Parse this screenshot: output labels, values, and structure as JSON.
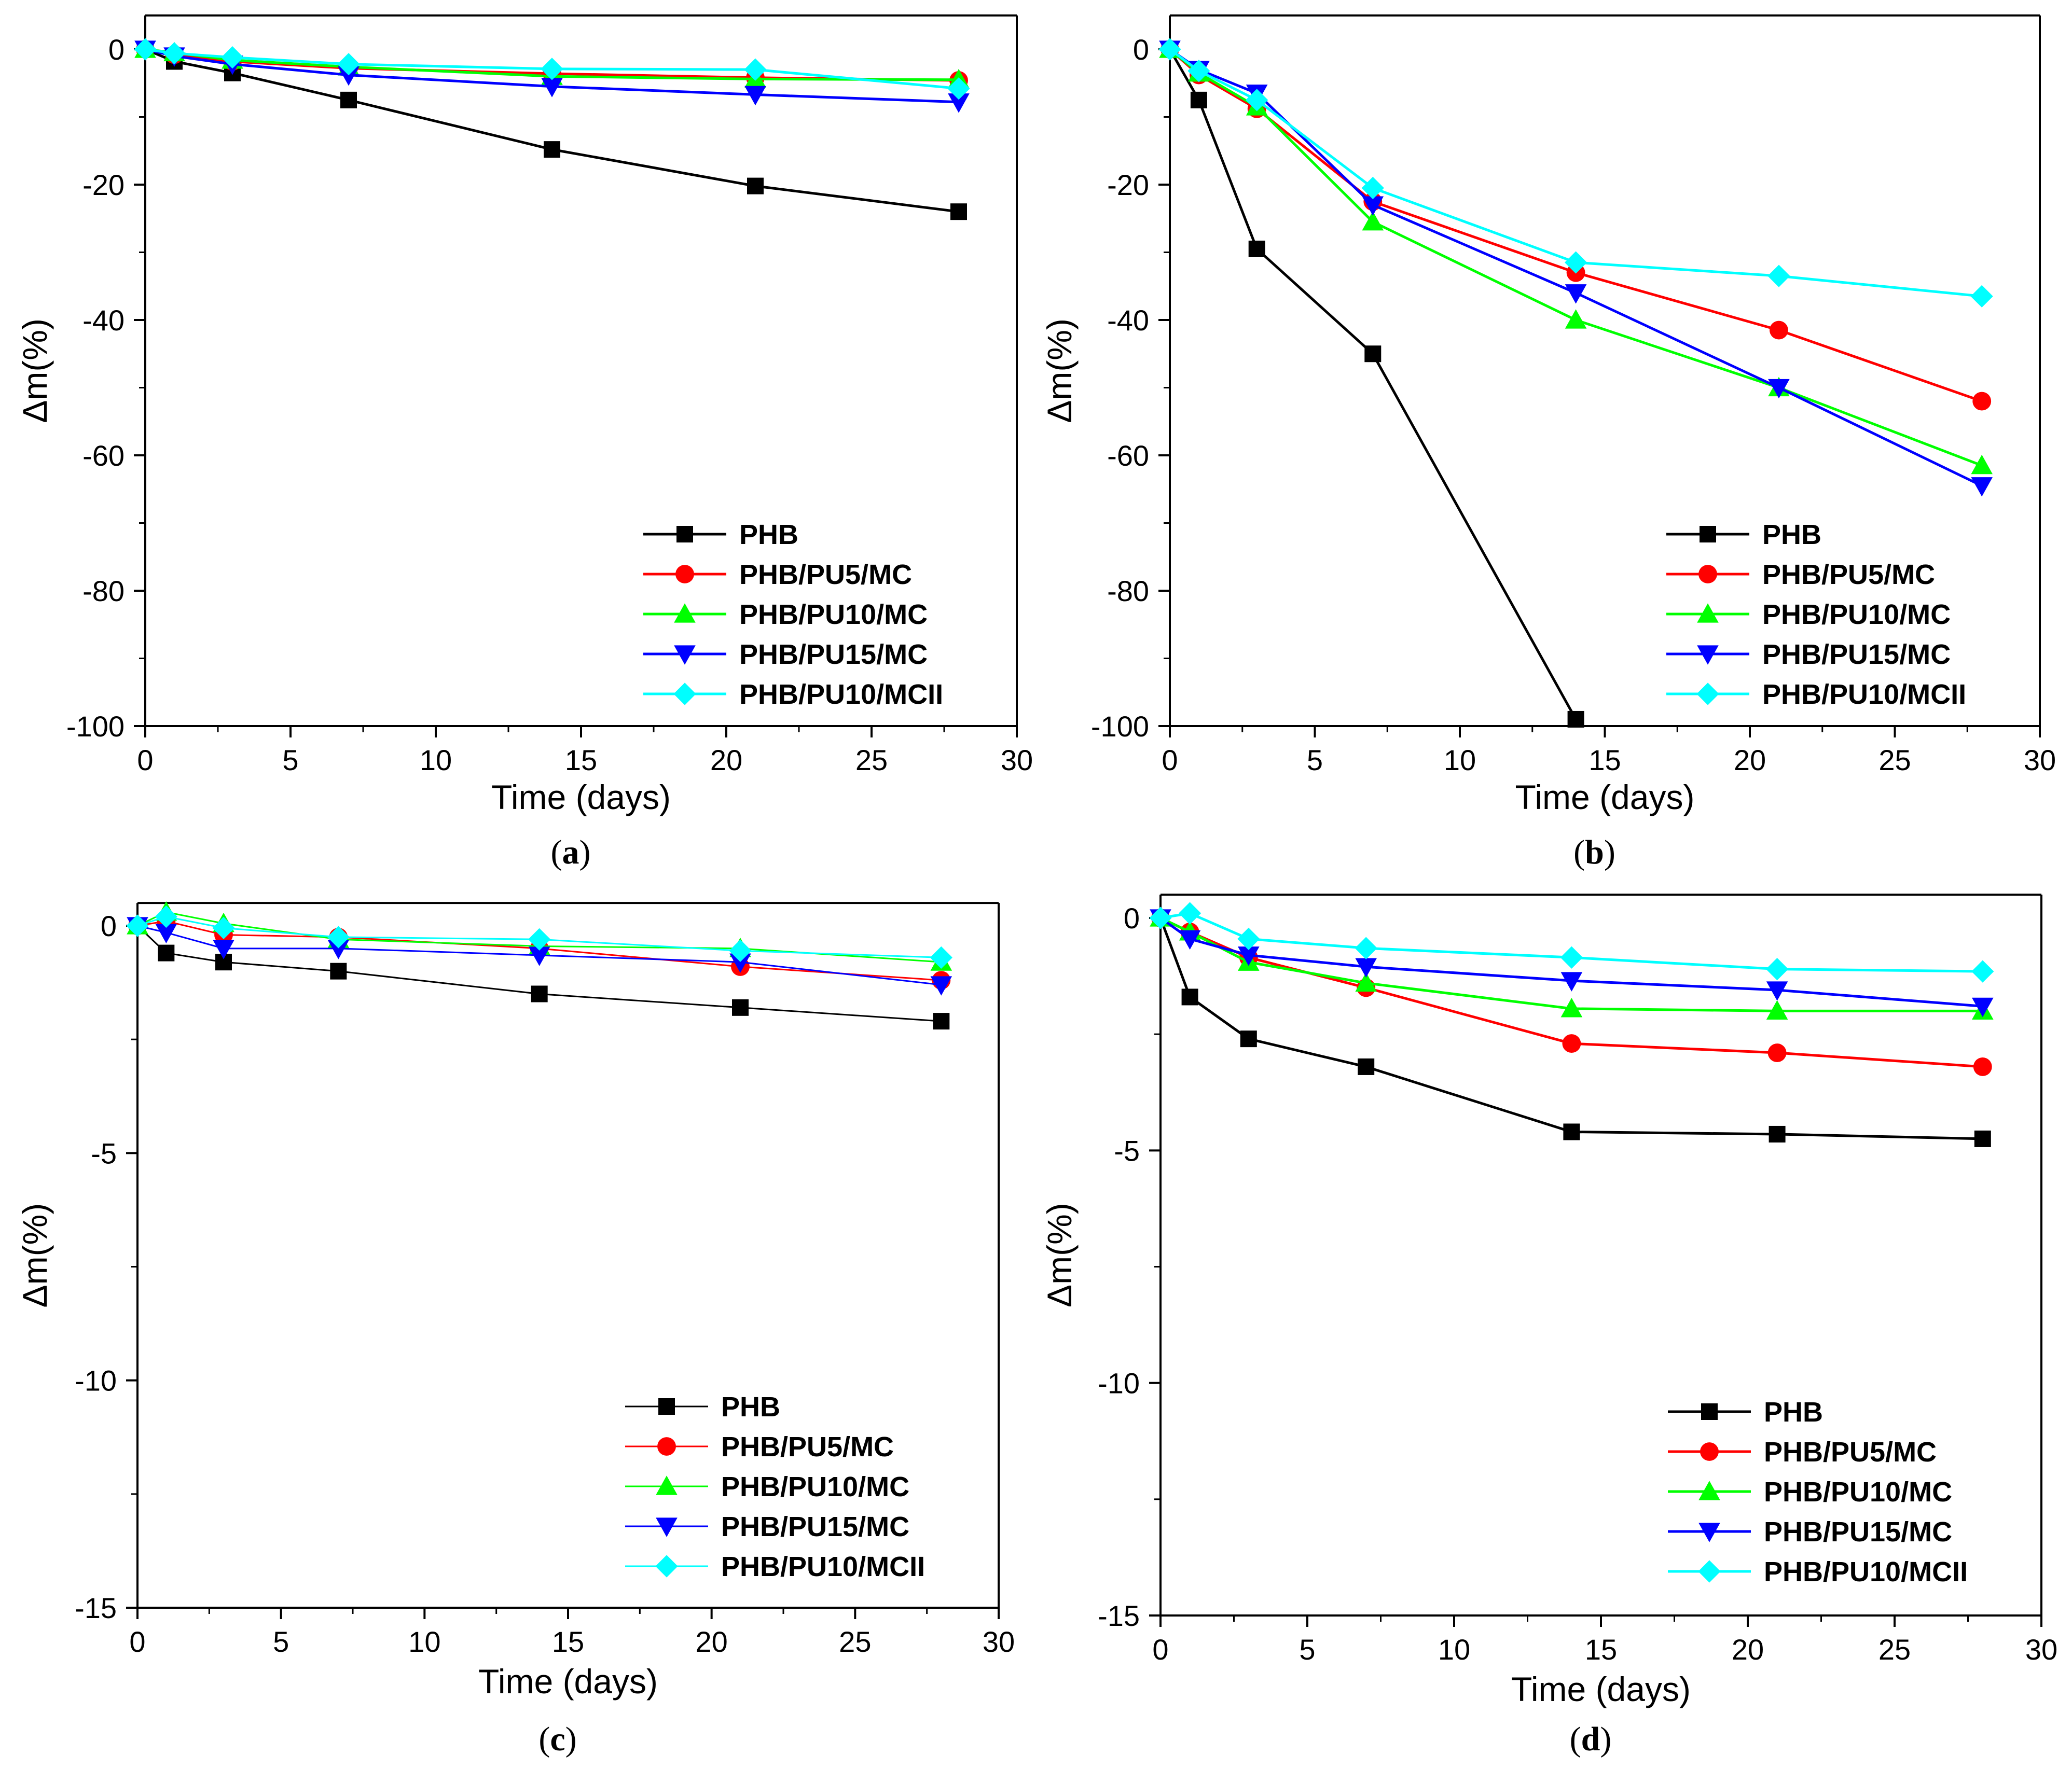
{
  "chart_data": [
    {
      "type": "line",
      "panel_label": "a",
      "xlabel": "Time (days)",
      "ylabel": "Δm(%)",
      "xlim": [
        0,
        30
      ],
      "ylim": [
        -100,
        5
      ],
      "xticks": [
        0,
        5,
        10,
        15,
        20,
        25,
        30
      ],
      "yticks": [
        0,
        -20,
        -40,
        -60,
        -80,
        -100
      ],
      "legend_position": "bottom-right",
      "x": [
        0,
        1,
        3,
        7,
        14,
        21,
        28
      ],
      "series": [
        {
          "name": "PHB",
          "marker": "square",
          "color": "#000000",
          "values": [
            0,
            -1.8,
            -3.5,
            -7.5,
            -14.8,
            -20.2,
            -24
          ]
        },
        {
          "name": "PHB/PU5/MC",
          "marker": "circle",
          "color": "#ff0000",
          "values": [
            0,
            -0.8,
            -1.8,
            -2.8,
            -3.6,
            -4.2,
            -4.6
          ]
        },
        {
          "name": "PHB/PU10/MC",
          "marker": "triangle-up",
          "color": "#00ff00",
          "values": [
            0,
            -0.5,
            -1.6,
            -2.6,
            -4.0,
            -4.4,
            -4.5
          ]
        },
        {
          "name": "PHB/PU15/MC",
          "marker": "triangle-down",
          "color": "#0000ff",
          "values": [
            0,
            -1.0,
            -2.2,
            -3.8,
            -5.5,
            -6.7,
            -7.8
          ]
        },
        {
          "name": "PHB/PU10/MCII",
          "marker": "diamond",
          "color": "#00ffff",
          "values": [
            0,
            -0.6,
            -1.2,
            -2.2,
            -2.9,
            -3.0,
            -5.8
          ]
        }
      ]
    },
    {
      "type": "line",
      "panel_label": "b",
      "xlabel": "Time (days)",
      "ylabel": "Δm(%)",
      "xlim": [
        0,
        30
      ],
      "ylim": [
        -100,
        5
      ],
      "xticks": [
        0,
        5,
        10,
        15,
        20,
        25,
        30
      ],
      "yticks": [
        0,
        -20,
        -40,
        -60,
        -80,
        -100
      ],
      "legend_position": "bottom-right",
      "x": [
        0,
        1,
        3,
        7,
        14,
        21,
        28
      ],
      "series": [
        {
          "name": "PHB",
          "marker": "square",
          "color": "#000000",
          "x": [
            0,
            1,
            3,
            7,
            14
          ],
          "values": [
            0,
            -7.5,
            -29.5,
            -45,
            -99
          ]
        },
        {
          "name": "PHB/PU5/MC",
          "marker": "circle",
          "color": "#ff0000",
          "values": [
            0,
            -3.8,
            -8.8,
            -22.5,
            -33,
            -41.5,
            -52
          ]
        },
        {
          "name": "PHB/PU10/MC",
          "marker": "triangle-up",
          "color": "#00ff00",
          "values": [
            0,
            -3.5,
            -8.5,
            -25.5,
            -40,
            -50,
            -61.5
          ]
        },
        {
          "name": "PHB/PU15/MC",
          "marker": "triangle-down",
          "color": "#0000ff",
          "values": [
            0,
            -3.0,
            -6.5,
            -23,
            -36,
            -50,
            -64.5
          ]
        },
        {
          "name": "PHB/PU10/MCII",
          "marker": "diamond",
          "color": "#00ffff",
          "values": [
            0,
            -3.2,
            -7.5,
            -20.5,
            -31.5,
            -33.5,
            -36.5
          ]
        }
      ]
    },
    {
      "type": "line",
      "panel_label": "c",
      "xlabel": "Time (days)",
      "ylabel": "Δm(%)",
      "xlim": [
        0,
        30
      ],
      "ylim": [
        -15,
        0.5
      ],
      "xticks": [
        0,
        5,
        10,
        15,
        20,
        25,
        30
      ],
      "yticks": [
        0,
        -5,
        -10,
        -15
      ],
      "legend_position": "bottom-right",
      "x": [
        0,
        1,
        3,
        7,
        14,
        21,
        28
      ],
      "series": [
        {
          "name": "PHB",
          "marker": "square",
          "color": "#000000",
          "values": [
            0,
            -0.6,
            -0.8,
            -1.0,
            -1.5,
            -1.8,
            -2.1
          ]
        },
        {
          "name": "PHB/PU5/MC",
          "marker": "circle",
          "color": "#ff0000",
          "values": [
            0,
            0.1,
            -0.2,
            -0.25,
            -0.5,
            -0.9,
            -1.2
          ]
        },
        {
          "name": "PHB/PU10/MC",
          "marker": "triangle-up",
          "color": "#00ff00",
          "values": [
            0,
            0.3,
            0.05,
            -0.3,
            -0.45,
            -0.5,
            -0.8
          ]
        },
        {
          "name": "PHB/PU15/MC",
          "marker": "triangle-down",
          "color": "#0000ff",
          "values": [
            0,
            -0.15,
            -0.5,
            -0.5,
            -0.65,
            -0.8,
            -1.3
          ]
        },
        {
          "name": "PHB/PU10/MCII",
          "marker": "diamond",
          "color": "#00ffff",
          "values": [
            0,
            0.2,
            -0.05,
            -0.25,
            -0.3,
            -0.55,
            -0.7
          ]
        }
      ]
    },
    {
      "type": "line",
      "panel_label": "d",
      "xlabel": "Time (days)",
      "ylabel": "Δm(%)",
      "xlim": [
        0,
        30
      ],
      "ylim": [
        -15,
        0.5
      ],
      "xticks": [
        0,
        5,
        10,
        15,
        20,
        25,
        30
      ],
      "yticks": [
        0,
        -5,
        -10,
        -15
      ],
      "legend_position": "bottom-right",
      "x": [
        0,
        1,
        3,
        7,
        14,
        21,
        28
      ],
      "series": [
        {
          "name": "PHB",
          "marker": "square",
          "color": "#000000",
          "values": [
            0,
            -1.7,
            -2.6,
            -3.2,
            -4.6,
            -4.65,
            -4.75
          ]
        },
        {
          "name": "PHB/PU5/MC",
          "marker": "circle",
          "color": "#ff0000",
          "values": [
            0,
            -0.3,
            -0.85,
            -1.5,
            -2.7,
            -2.9,
            -3.2
          ]
        },
        {
          "name": "PHB/PU10/MC",
          "marker": "triangle-up",
          "color": "#00ff00",
          "values": [
            0,
            -0.3,
            -0.95,
            -1.4,
            -1.95,
            -2.0,
            -2.0
          ]
        },
        {
          "name": "PHB/PU15/MC",
          "marker": "triangle-down",
          "color": "#0000ff",
          "values": [
            0,
            -0.45,
            -0.8,
            -1.05,
            -1.35,
            -1.55,
            -1.9
          ]
        },
        {
          "name": "PHB/PU10/MCII",
          "marker": "diamond",
          "color": "#00ffff",
          "values": [
            0,
            0.1,
            -0.45,
            -0.65,
            -0.85,
            -1.1,
            -1.15
          ]
        }
      ]
    }
  ]
}
